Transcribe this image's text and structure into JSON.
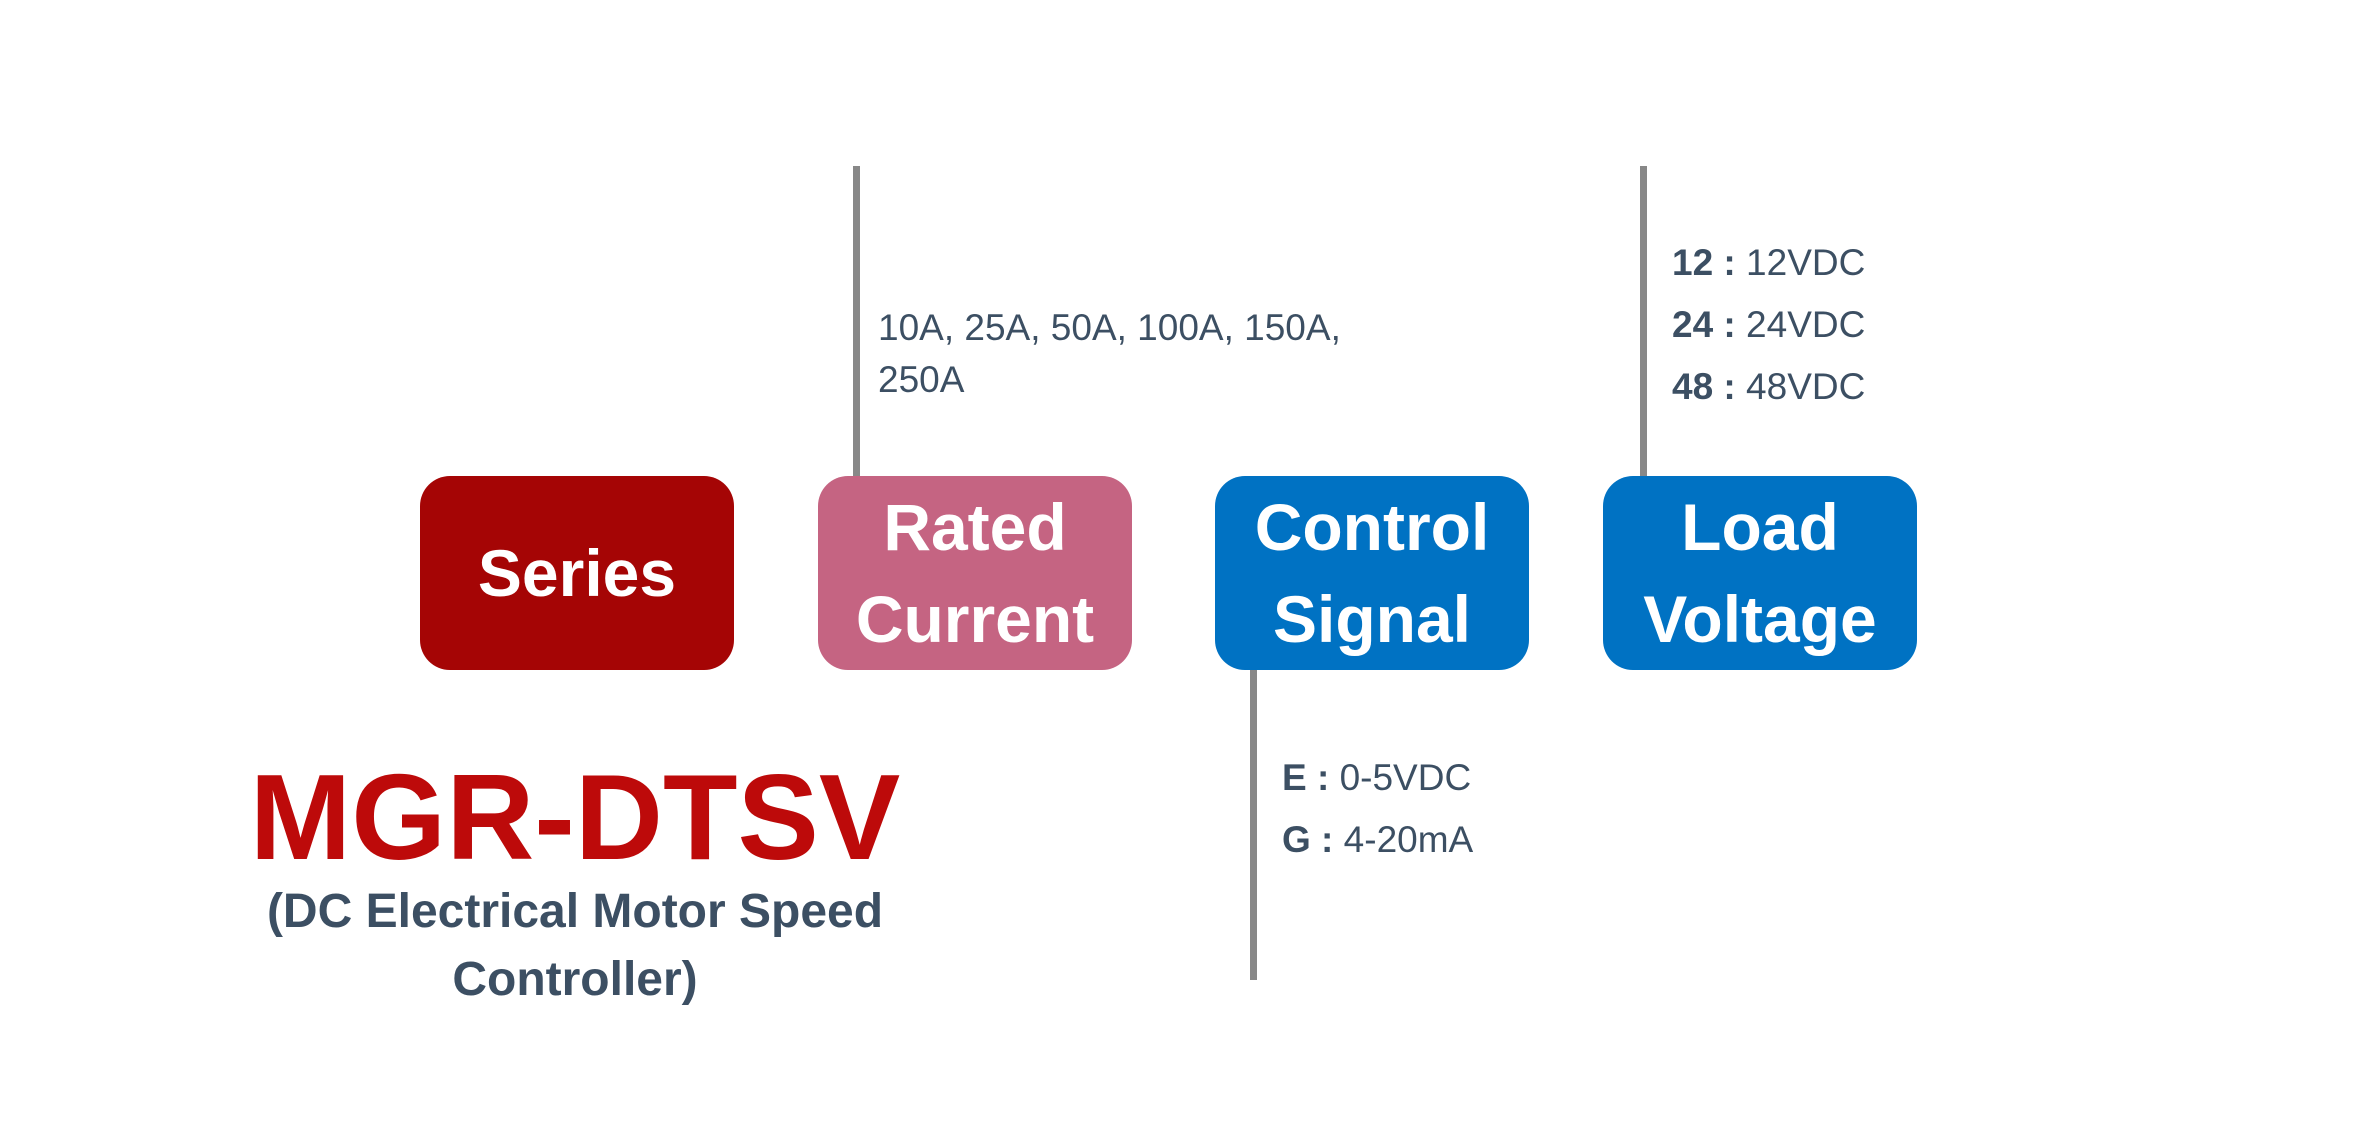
{
  "boxes": {
    "series": {
      "lines": [
        "Series"
      ],
      "color": "#a50505"
    },
    "rated_current": {
      "lines": [
        "Rated",
        "Current"
      ],
      "color": "#c56482"
    },
    "control_signal": {
      "lines": [
        "Control",
        "Signal"
      ],
      "color": "#0072c3"
    },
    "load_voltage": {
      "lines": [
        "Load",
        "Voltage"
      ],
      "color": "#0072c3"
    }
  },
  "rated_current_options": "10A, 25A, 50A, 100A, 150A, 250A",
  "load_voltage_options": [
    {
      "code": "12 :",
      "value": "12VDC"
    },
    {
      "code": "24 :",
      "value": "24VDC"
    },
    {
      "code": "48 :",
      "value": "48VDC"
    }
  ],
  "control_signal_options": [
    {
      "code": "E :",
      "value": "0-5VDC"
    },
    {
      "code": "G :",
      "value": "4-20mA"
    }
  ],
  "model": {
    "name": "MGR-DTSV",
    "description": "(DC Electrical Motor Speed Controller)"
  }
}
